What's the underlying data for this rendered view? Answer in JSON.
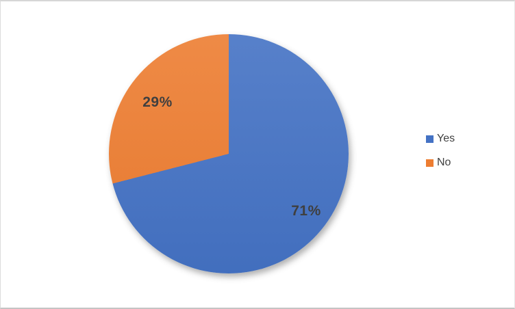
{
  "chart_data": {
    "type": "pie",
    "categories": [
      "Yes",
      "No"
    ],
    "values": [
      71,
      29
    ],
    "data_labels": [
      "71%",
      "29%"
    ],
    "colors": [
      "#4472C4",
      "#ED7D31"
    ],
    "title": "",
    "legend_position": "right",
    "start_angle_deg": 0,
    "direction": "clockwise",
    "label_color": "#3f3f3f",
    "legend_text_color": "#404040",
    "background_color": "#ffffff"
  }
}
